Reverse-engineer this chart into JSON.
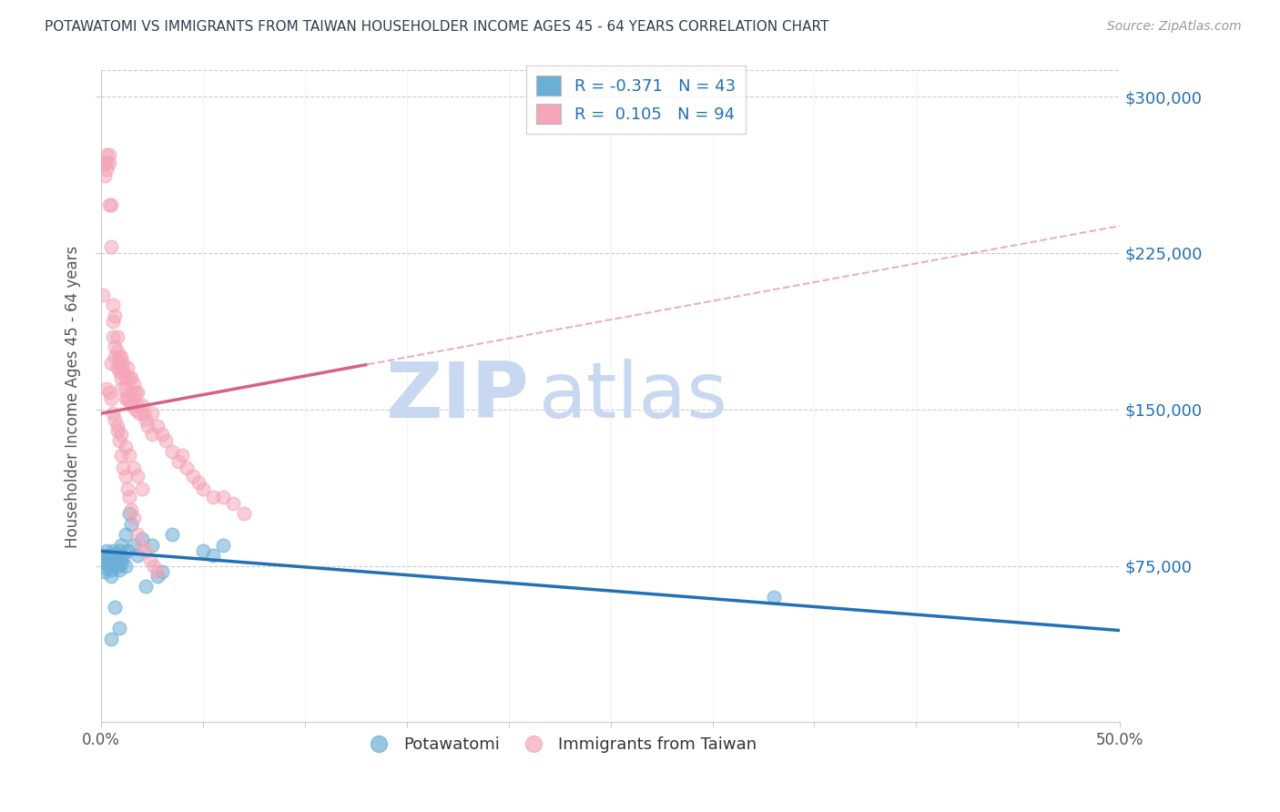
{
  "title": "POTAWATOMI VS IMMIGRANTS FROM TAIWAN HOUSEHOLDER INCOME AGES 45 - 64 YEARS CORRELATION CHART",
  "source": "Source: ZipAtlas.com",
  "ylabel": "Householder Income Ages 45 - 64 years",
  "xlim": [
    0.0,
    0.5
  ],
  "ylim": [
    0,
    312500
  ],
  "xtick_labels": [
    "0.0%",
    "",
    "",
    "",
    "",
    "",
    "",
    "",
    "",
    "",
    "50.0%"
  ],
  "xtick_values": [
    0.0,
    0.05,
    0.1,
    0.15,
    0.2,
    0.25,
    0.3,
    0.35,
    0.4,
    0.45,
    0.5
  ],
  "ytick_labels": [
    "$75,000",
    "$150,000",
    "$225,000",
    "$300,000"
  ],
  "ytick_values": [
    75000,
    150000,
    225000,
    300000
  ],
  "legend1_R": "-0.371",
  "legend1_N": "43",
  "legend2_R": "0.105",
  "legend2_N": "94",
  "blue_color": "#6baed6",
  "blue_line_color": "#2171b5",
  "pink_color": "#f4a6b8",
  "pink_line_color": "#d6608a",
  "pink_dashed_color": "#d6608a",
  "watermark_zip": "ZIP",
  "watermark_atlas": "atlas",
  "watermark_color": "#c8d8f0",
  "blue_scatter_x": [
    0.001,
    0.002,
    0.002,
    0.003,
    0.003,
    0.003,
    0.004,
    0.004,
    0.005,
    0.005,
    0.005,
    0.006,
    0.006,
    0.007,
    0.007,
    0.008,
    0.008,
    0.009,
    0.009,
    0.01,
    0.01,
    0.01,
    0.011,
    0.012,
    0.012,
    0.013,
    0.014,
    0.015,
    0.016,
    0.018,
    0.02,
    0.022,
    0.025,
    0.028,
    0.03,
    0.035,
    0.05,
    0.055,
    0.06,
    0.33,
    0.005,
    0.007,
    0.009
  ],
  "blue_scatter_y": [
    80000,
    78000,
    72000,
    82000,
    76000,
    74000,
    79000,
    75000,
    80000,
    73000,
    70000,
    82000,
    78000,
    79000,
    76000,
    80000,
    75000,
    82000,
    73000,
    85000,
    80000,
    76000,
    79000,
    90000,
    75000,
    82000,
    100000,
    95000,
    85000,
    80000,
    88000,
    65000,
    85000,
    70000,
    72000,
    90000,
    82000,
    80000,
    85000,
    60000,
    40000,
    55000,
    45000
  ],
  "pink_scatter_x": [
    0.001,
    0.002,
    0.002,
    0.003,
    0.003,
    0.003,
    0.004,
    0.004,
    0.004,
    0.005,
    0.005,
    0.005,
    0.006,
    0.006,
    0.006,
    0.007,
    0.007,
    0.007,
    0.008,
    0.008,
    0.008,
    0.009,
    0.009,
    0.009,
    0.01,
    0.01,
    0.01,
    0.01,
    0.011,
    0.011,
    0.012,
    0.012,
    0.012,
    0.013,
    0.013,
    0.014,
    0.014,
    0.015,
    0.015,
    0.015,
    0.016,
    0.016,
    0.017,
    0.017,
    0.018,
    0.018,
    0.019,
    0.02,
    0.021,
    0.022,
    0.023,
    0.025,
    0.025,
    0.028,
    0.03,
    0.032,
    0.035,
    0.038,
    0.04,
    0.042,
    0.045,
    0.048,
    0.05,
    0.055,
    0.06,
    0.065,
    0.07,
    0.008,
    0.01,
    0.012,
    0.014,
    0.016,
    0.018,
    0.02,
    0.003,
    0.004,
    0.005,
    0.006,
    0.007,
    0.008,
    0.009,
    0.01,
    0.011,
    0.012,
    0.013,
    0.014,
    0.015,
    0.016,
    0.018,
    0.02,
    0.022,
    0.024,
    0.026,
    0.028
  ],
  "pink_scatter_y": [
    205000,
    268000,
    262000,
    268000,
    272000,
    265000,
    268000,
    272000,
    248000,
    248000,
    228000,
    172000,
    200000,
    192000,
    185000,
    195000,
    180000,
    175000,
    185000,
    178000,
    170000,
    175000,
    172000,
    168000,
    175000,
    170000,
    165000,
    160000,
    172000,
    168000,
    165000,
    160000,
    155000,
    170000,
    155000,
    165000,
    155000,
    165000,
    158000,
    152000,
    162000,
    155000,
    158000,
    150000,
    158000,
    152000,
    148000,
    152000,
    148000,
    145000,
    142000,
    148000,
    138000,
    142000,
    138000,
    135000,
    130000,
    125000,
    128000,
    122000,
    118000,
    115000,
    112000,
    108000,
    108000,
    105000,
    100000,
    142000,
    138000,
    132000,
    128000,
    122000,
    118000,
    112000,
    160000,
    158000,
    155000,
    148000,
    145000,
    140000,
    135000,
    128000,
    122000,
    118000,
    112000,
    108000,
    102000,
    98000,
    90000,
    85000,
    82000,
    78000,
    75000,
    72000
  ]
}
